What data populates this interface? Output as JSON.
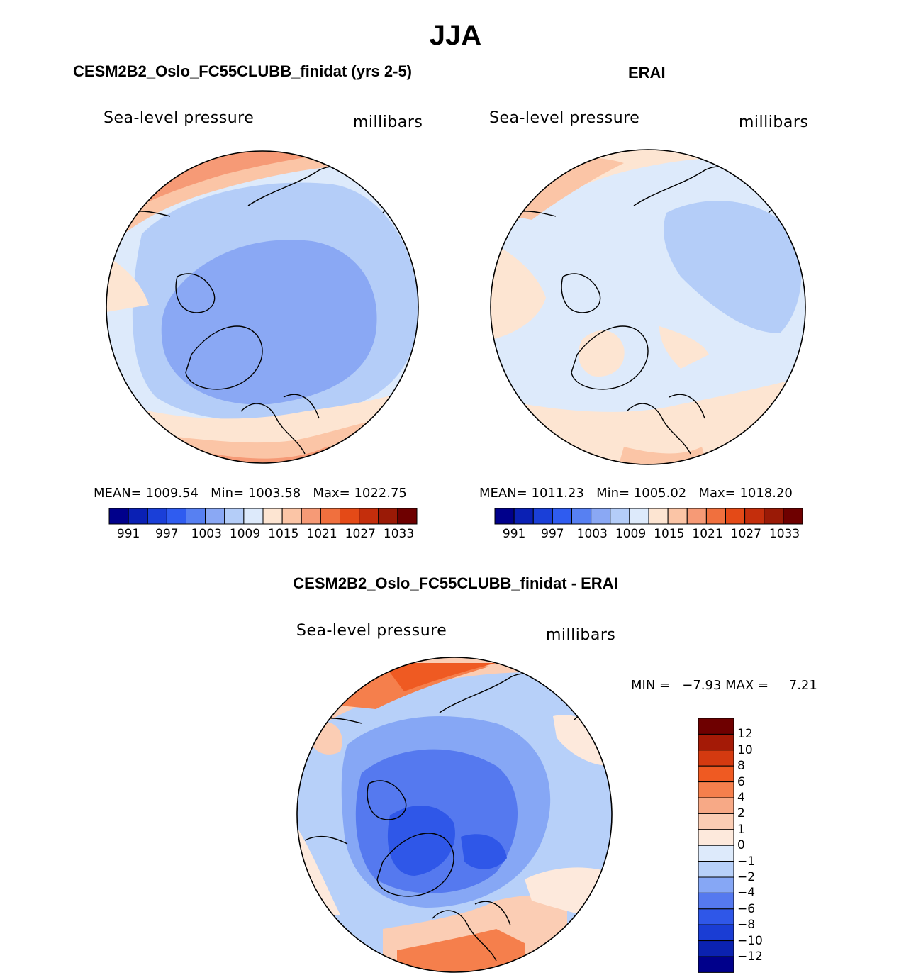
{
  "figure": {
    "title": "JJA",
    "variable": "Sea-level pressure",
    "units": "millibars"
  },
  "panels": [
    {
      "id": "model",
      "title": "CESM2B2_Oslo_FC55CLUBB_finidat (yrs 2-5)",
      "subtitle_left": "Sea-level pressure",
      "subtitle_right": "millibars",
      "stats_text": "MEAN= 1009.54   Min= 1003.58   Max= 1022.75",
      "mean": 1009.54,
      "min": 1003.58,
      "max": 1022.75
    },
    {
      "id": "obs",
      "title": "ERAI",
      "subtitle_left": "Sea-level pressure",
      "subtitle_right": "millibars",
      "stats_text": "MEAN= 1011.23   Min= 1005.02   Max= 1018.20",
      "mean": 1011.23,
      "min": 1005.02,
      "max": 1018.2
    },
    {
      "id": "diff",
      "title": "CESM2B2_Oslo_FC55CLUBB_finidat - ERAI",
      "subtitle_left": "Sea-level pressure",
      "subtitle_right": "millibars",
      "stats_text": "MIN =   −7.93 MAX =     7.21",
      "min": -7.93,
      "max": 7.21
    }
  ],
  "colorbar_abs": {
    "colors": [
      "#00008b",
      "#0a20b4",
      "#1a3fd8",
      "#2f5cf0",
      "#5780f2",
      "#8aa8f4",
      "#b4cdf8",
      "#ddeafb",
      "#fde5d2",
      "#fbc5a6",
      "#f69a76",
      "#f0703e",
      "#e44a17",
      "#c42e0c",
      "#9a1a06",
      "#6e0000"
    ],
    "labels": [
      "991",
      "997",
      "1003",
      "1009",
      "1015",
      "1021",
      "1027",
      "1033"
    ]
  },
  "colorbar_diff": {
    "colors": [
      "#6e0000",
      "#a41a06",
      "#d43a10",
      "#ef5a22",
      "#f57f4c",
      "#f7a986",
      "#fbcdb4",
      "#fde9dc",
      "#ddeafb",
      "#b7d0f9",
      "#86a7f5",
      "#5579ef",
      "#2f57e8",
      "#1a3dd4",
      "#0b22b0",
      "#00008b"
    ],
    "labels": [
      "12",
      "10",
      "8",
      "6",
      "4",
      "2",
      "1",
      "0",
      "−1",
      "−2",
      "−4",
      "−6",
      "−8",
      "−10",
      "−12"
    ]
  }
}
